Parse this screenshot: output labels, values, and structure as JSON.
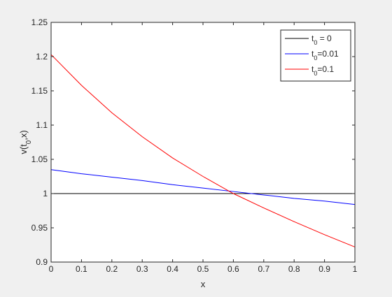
{
  "chart_data": {
    "type": "line",
    "xlabel": "x",
    "ylabel": {
      "base": "v(t",
      "sub": "0",
      "rest": ",x)"
    },
    "xlim": [
      0,
      1
    ],
    "ylim": [
      0.9,
      1.25
    ],
    "xticks": [
      0,
      0.1,
      0.2,
      0.3,
      0.4,
      0.5,
      0.6,
      0.7,
      0.8,
      0.9,
      1
    ],
    "xticklabels": [
      "0",
      "0.1",
      "0.2",
      "0.3",
      "0.4",
      "0.5",
      "0.6",
      "0.7",
      "0.8",
      "0.9",
      "1"
    ],
    "yticks": [
      0.9,
      0.95,
      1,
      1.05,
      1.1,
      1.15,
      1.2,
      1.25
    ],
    "yticklabels": [
      "0.9",
      "0.95",
      "1",
      "1.05",
      "1.1",
      "1.15",
      "1.2",
      "1.25"
    ],
    "grid": false,
    "legend_position": "top-right",
    "series": [
      {
        "name": {
          "base": "t",
          "sub": "0",
          "rest": " = 0"
        },
        "color": "#000000",
        "x": [
          0,
          0.1,
          0.2,
          0.3,
          0.4,
          0.5,
          0.6,
          0.7,
          0.8,
          0.9,
          1
        ],
        "y": [
          1,
          1,
          1,
          1,
          1,
          1,
          1,
          1,
          1,
          1,
          1
        ]
      },
      {
        "name": {
          "base": "t",
          "sub": "0",
          "rest": "=0.01"
        },
        "color": "#0000ff",
        "x": [
          0,
          0.1,
          0.2,
          0.3,
          0.4,
          0.5,
          0.6,
          0.7,
          0.8,
          0.9,
          1
        ],
        "y": [
          1.035,
          1.029,
          1.024,
          1.019,
          1.013,
          1.008,
          1.003,
          0.998,
          0.993,
          0.989,
          0.984
        ]
      },
      {
        "name": {
          "base": "t",
          "sub": "0",
          "rest": "=0.1"
        },
        "color": "#ff0000",
        "x": [
          0,
          0.1,
          0.2,
          0.3,
          0.4,
          0.5,
          0.6,
          0.7,
          0.8,
          0.9,
          1
        ],
        "y": [
          1.203,
          1.158,
          1.118,
          1.083,
          1.052,
          1.025,
          1.0,
          0.979,
          0.959,
          0.94,
          0.922
        ]
      }
    ]
  }
}
